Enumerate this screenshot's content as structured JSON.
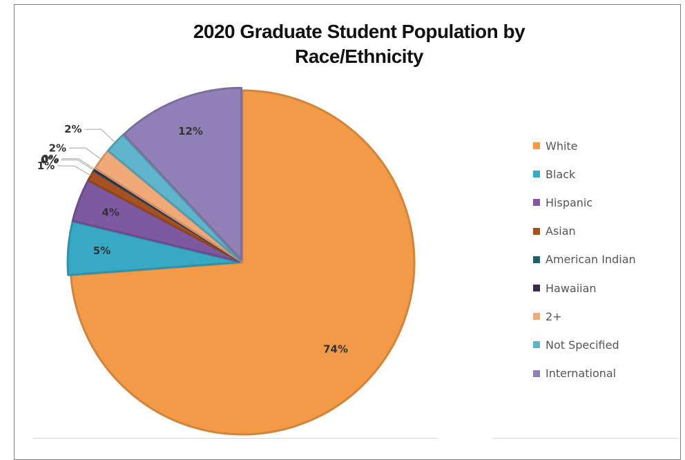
{
  "chart_data": {
    "type": "pie",
    "title": "2020 Graduate Student Population by Race/Ethnicity",
    "title_lines": [
      "2020 Graduate Student Population by",
      "Race/Ethnicity"
    ],
    "legend_position": "right",
    "slices": [
      {
        "label": "White",
        "value": 74,
        "display": "74%",
        "color": "#f39a46"
      },
      {
        "label": "Black",
        "value": 5,
        "display": "5%",
        "color": "#38a9c5"
      },
      {
        "label": "Hispanic",
        "value": 4,
        "display": "4%",
        "color": "#7e58a0"
      },
      {
        "label": "Asian",
        "value": 1,
        "display": "1%",
        "color": "#a8501f"
      },
      {
        "label": "American Indian",
        "value": 0,
        "display": "0%",
        "color": "#1f5e6a"
      },
      {
        "label": "Hawaiian",
        "value": 0,
        "display": "0%",
        "color": "#3f2a4f"
      },
      {
        "label": "2+",
        "value": 2,
        "display": "2%",
        "color": "#f1a978"
      },
      {
        "label": "Not Specified",
        "value": 2,
        "display": "2%",
        "color": "#5fb6cc"
      },
      {
        "label": "International",
        "value": 12,
        "display": "12%",
        "color": "#9180b8"
      }
    ]
  }
}
